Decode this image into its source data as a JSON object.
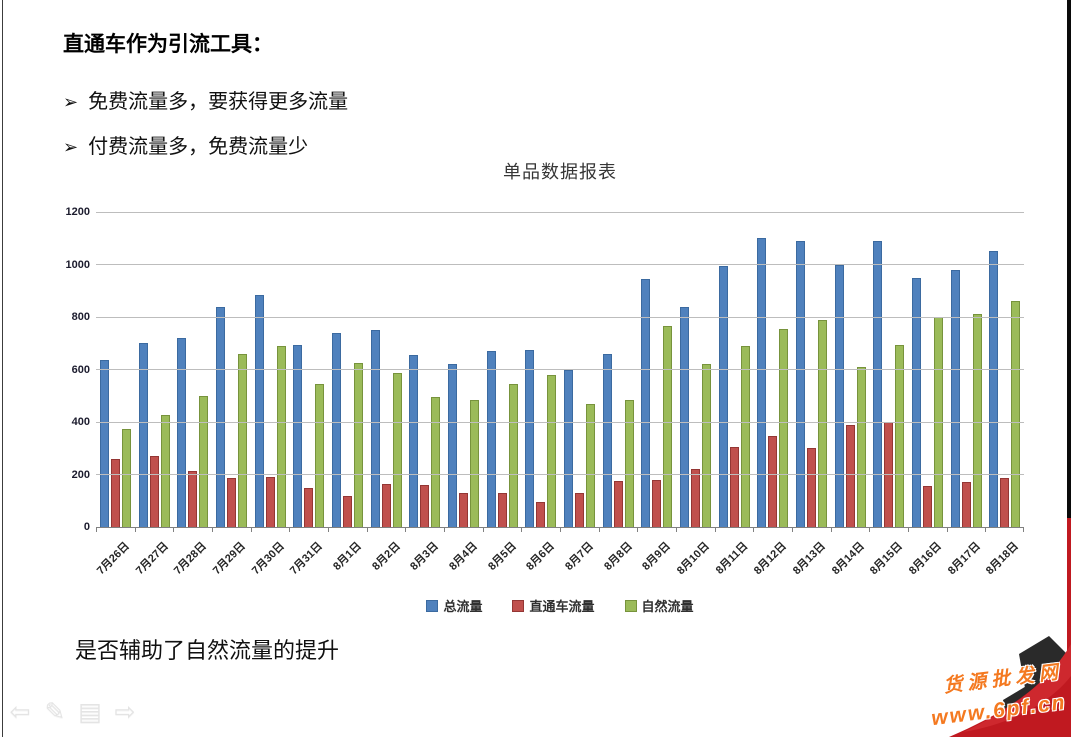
{
  "slide": {
    "heading": "直通车作为引流工具：",
    "bullet_glyph": "➢",
    "bullets": [
      "免费流量多，要获得更多流量",
      "付费流量多，免费流量少"
    ],
    "footer_question": "是否辅助了自然流量的提升"
  },
  "chart_data": {
    "type": "bar",
    "title": "单品数据报表",
    "categories": [
      "7月26日",
      "7月27日",
      "7月28日",
      "7月29日",
      "7月30日",
      "7月31日",
      "8月1日",
      "8月2日",
      "8月3日",
      "8月4日",
      "8月5日",
      "8月6日",
      "8月7日",
      "8月8日",
      "8月9日",
      "8月10日",
      "8月11日",
      "8月12日",
      "8月13日",
      "8月14日",
      "8月15日",
      "8月16日",
      "8月17日",
      "8月18日"
    ],
    "series": [
      {
        "name": "总流量",
        "color": "#4F81BD",
        "border": "#3B6AA0",
        "values": [
          635,
          700,
          720,
          840,
          885,
          695,
          740,
          750,
          655,
          620,
          670,
          675,
          600,
          660,
          945,
          840,
          995,
          1100,
          1090,
          1000,
          1090,
          950,
          980,
          1050
        ]
      },
      {
        "name": "直通车流量",
        "color": "#C0504D",
        "border": "#943634",
        "values": [
          260,
          270,
          215,
          185,
          190,
          150,
          120,
          165,
          160,
          130,
          130,
          95,
          130,
          175,
          180,
          220,
          305,
          345,
          300,
          390,
          400,
          155,
          170,
          185
        ]
      },
      {
        "name": "自然流量",
        "color": "#9BBB59",
        "border": "#77933C",
        "values": [
          375,
          425,
          500,
          660,
          690,
          545,
          625,
          585,
          495,
          485,
          545,
          580,
          470,
          485,
          765,
          620,
          690,
          755,
          790,
          610,
          695,
          800,
          810,
          860
        ]
      }
    ],
    "ylim": [
      0,
      1200
    ],
    "ytick_interval": 200,
    "grid": true,
    "legend_position": "bottom",
    "x_label_rotation_deg": -45
  },
  "nav_controls": {
    "items": [
      {
        "name": "previous-slide",
        "glyph": "⇦"
      },
      {
        "name": "pen-tool",
        "glyph": "✎"
      },
      {
        "name": "slide-menu",
        "glyph": "▤"
      },
      {
        "name": "next-slide",
        "glyph": "⇨"
      }
    ]
  },
  "watermark": {
    "line1": "货源批发网",
    "line2": "www.6pf.cn",
    "color": "#F47920"
  },
  "decor": {
    "edge_black": "#0a0a0a",
    "corner_red": "#c01920",
    "corner_dark": "#2a2a2a"
  }
}
